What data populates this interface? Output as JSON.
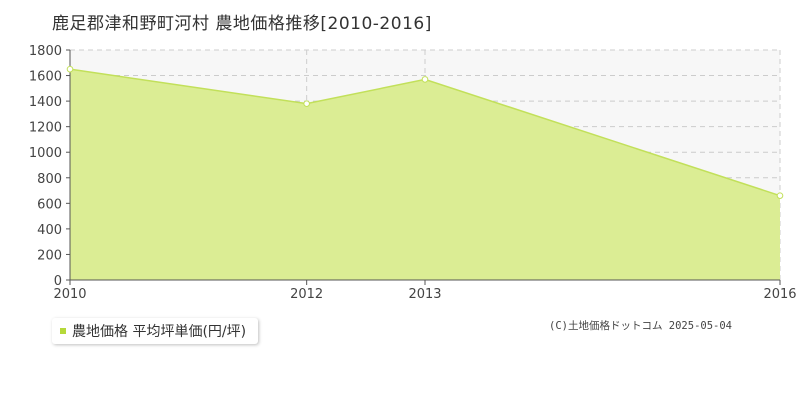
{
  "title": "鹿足郡津和野町河村 農地価格推移[2010-2016]",
  "legend": {
    "label": "農地価格 平均坪単価(円/坪)"
  },
  "credit": "(C)土地価格ドットコム 2025-05-04",
  "colors": {
    "fill": "#dbed94",
    "line": "#c2e05a",
    "swatch": "#b5d93a",
    "grid": "#cccccc",
    "plot_bg": "#f7f7f7"
  },
  "chart_data": {
    "type": "area",
    "x": [
      "2010",
      "2012",
      "2013",
      "2016"
    ],
    "series": [
      {
        "name": "農地価格 平均坪単価(円/坪)",
        "values": [
          1650,
          1380,
          1570,
          660
        ]
      }
    ],
    "yticks": [
      0,
      200,
      400,
      600,
      800,
      1000,
      1200,
      1400,
      1600,
      1800
    ],
    "ylim": [
      0,
      1800
    ],
    "grid": true,
    "legend_position": "bottom-left"
  }
}
